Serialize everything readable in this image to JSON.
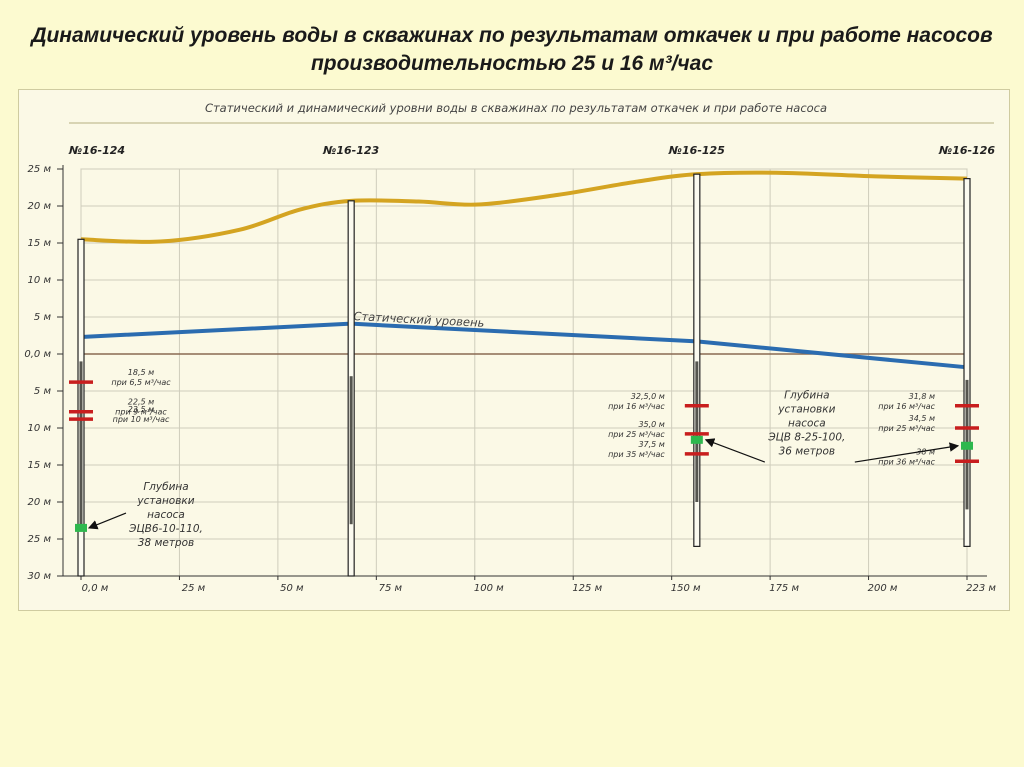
{
  "slide_title": {
    "line1": "Динамический уровень воды в скважинах по результатам откачек и при работе насосов",
    "line2": "производительностью 25 и 16 м³/час"
  },
  "chart_data": {
    "type": "line",
    "title": "Статический и динамический уровни воды в скважинах по результатам откачек и при работе насоса",
    "x_ticks": [
      "0,0 м",
      "25 м",
      "50 м",
      "75 м",
      "100 м",
      "125 м",
      "150 м",
      "175 м",
      "200 м",
      "223 м"
    ],
    "y_ticks": [
      "25 м",
      "20 м",
      "15 м",
      "10 м",
      "5 м",
      "0,0 м",
      "5 м",
      "10 м",
      "15 м",
      "20 м",
      "25 м",
      "30 м"
    ],
    "xlim": [
      0,
      223
    ],
    "ylim": [
      -30,
      25
    ],
    "grid": true,
    "series": [
      {
        "name": "",
        "color": "#d4a421",
        "x": [
          0,
          20,
          40,
          55,
          68,
          85,
          100,
          120,
          140,
          155,
          175,
          200,
          223
        ],
        "y": [
          15.5,
          15.2,
          16.8,
          19.5,
          20.7,
          20.6,
          20.2,
          21.5,
          23.3,
          24.3,
          24.5,
          24.0,
          23.7
        ]
      },
      {
        "name": "Статический уровень",
        "color": "#2b6cb0",
        "x": [
          0,
          68,
          155,
          223
        ],
        "y": [
          2.3,
          4.1,
          1.7,
          -1.8
        ]
      }
    ],
    "wells": [
      {
        "label": "№16-124",
        "x": 0,
        "top": 15.5,
        "bottom": -30,
        "screen_top": -1,
        "screen_bottom": -24,
        "levels": [
          {
            "depth": -3.8,
            "texts": [
              "18,5 м",
              "при 6,5 м³/час"
            ]
          },
          {
            "depth": -7.8,
            "texts": [
              "22,5 м",
              "при 9 м³/час"
            ]
          },
          {
            "depth": -8.8,
            "texts": [
              "23,5 м",
              "при 10 м³/час"
            ]
          }
        ],
        "pump_depth": -23.5,
        "pump_texts": [
          "Глубина",
          "установки",
          "насоса",
          "ЭЦВ6-10-110,",
          "38 метров"
        ]
      },
      {
        "label": "№16-123",
        "x": 68,
        "top": 20.7,
        "bottom": -30,
        "screen_top": -3,
        "screen_bottom": -23,
        "levels": []
      },
      {
        "label": "№16-125",
        "x": 155,
        "top": 24.3,
        "bottom": -26,
        "screen_top": -1,
        "screen_bottom": -20,
        "levels": [
          {
            "depth": -7,
            "texts": [
              "32,5,0 м",
              "при 16 м³/час"
            ]
          },
          {
            "depth": -10.8,
            "texts": [
              "35,0 м",
              "при 25 м³/час"
            ]
          },
          {
            "depth": -13.5,
            "texts": [
              "37,5 м",
              "при 35 м³/час"
            ]
          }
        ],
        "pump_depth": -11.6,
        "pump_texts": [
          "Глубина",
          "установки",
          "насоса",
          "ЭЦВ 8-25-100,",
          "36 метров"
        ]
      },
      {
        "label": "№16-126",
        "x": 223,
        "top": 23.7,
        "bottom": -26,
        "screen_top": -3.5,
        "screen_bottom": -21,
        "levels": [
          {
            "depth": -7,
            "texts": [
              "31,8 м",
              "при 16 м³/час"
            ]
          },
          {
            "depth": -10,
            "texts": [
              "34,5 м",
              "при 25 м³/час"
            ]
          },
          {
            "depth": -14.5,
            "texts": [
              "38 м",
              "при 36 м³/час"
            ]
          }
        ],
        "pump_depth": -12.4
      }
    ]
  }
}
